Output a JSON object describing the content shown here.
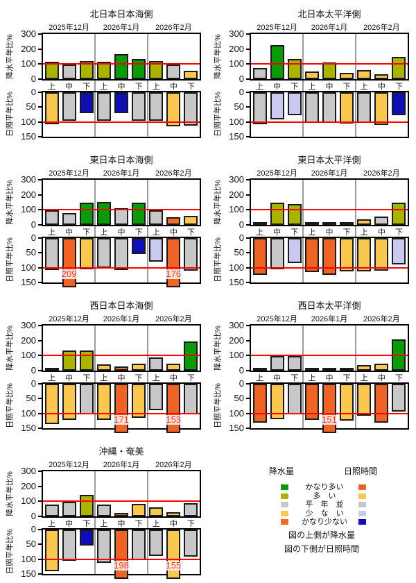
{
  "axes_common": {
    "precip_ylabel": "降水平年比%",
    "sun_ylabel": "日照平年比%",
    "precip_ylim": [
      0,
      300
    ],
    "precip_yticks": [
      0,
      100,
      200,
      300
    ],
    "sun_ylim": [
      0,
      150
    ],
    "sun_yticks": [
      0,
      50,
      100,
      150
    ],
    "sun_axis_inverted": true,
    "reference_line": 100,
    "grid": false
  },
  "colors": {
    "ref_line": "#ff0000",
    "month_divider": "#9b9b9b",
    "bar_outline": "#1a1a1a",
    "overflow_label": "#ff3333",
    "precip_scale": {
      "かなり多い": "#0a9a0a",
      "多い": "#a9b400",
      "平年並": "#c8c8c8",
      "少ない": "#fac750",
      "かなり少ない": "#ee6e26"
    },
    "sunshine_scale": {
      "かなり多い": "#ed6426",
      "多い": "#fac750",
      "平年並": "#c8c8c8",
      "少ない": "#cacaf0",
      "かなり少ない": "#0f0fb6"
    }
  },
  "chart_data": [
    {
      "type": "bar",
      "title": "北日本日本海側",
      "name": "chart-north-japan-sea-side",
      "months": [
        "2025年12月",
        "2026年1月",
        "2026年2月"
      ],
      "periods": [
        "上",
        "中",
        "下",
        "上",
        "中",
        "下",
        "上",
        "中",
        "下"
      ],
      "precip": {
        "ylabel": "降水平年比%",
        "ylim": [
          0,
          300
        ],
        "yticks": [
          0,
          100,
          200,
          300
        ],
        "ref_line": 100,
        "values": [
          115,
          95,
          120,
          115,
          165,
          135,
          120,
          95,
          57
        ],
        "categories": [
          "多い",
          "平年並",
          "多い",
          "多い",
          "かなり多い",
          "かなり多い",
          "多い",
          "平年並",
          "少ない"
        ]
      },
      "sunshine": {
        "ylabel": "日照平年比%",
        "ylim": [
          0,
          150
        ],
        "inverted": true,
        "yticks": [
          0,
          50,
          100,
          150
        ],
        "ref_line": 100,
        "values": [
          107,
          96,
          71,
          96,
          71,
          96,
          96,
          116,
          112
        ],
        "categories": [
          "多い",
          "平年並",
          "かなり少ない",
          "平年並",
          "かなり少ない",
          "平年並",
          "平年並",
          "多い",
          "平年並"
        ]
      }
    },
    {
      "type": "bar",
      "title": "北日本太平洋側",
      "name": "chart-north-japan-pacific-side",
      "months": [
        "2025年12月",
        "2026年1月",
        "2026年2月"
      ],
      "periods": [
        "上",
        "中",
        "下",
        "上",
        "中",
        "下",
        "上",
        "中",
        "下"
      ],
      "precip": {
        "ylabel": "降水平年比%",
        "ylim": [
          0,
          300
        ],
        "yticks": [
          0,
          100,
          200,
          300
        ],
        "ref_line": 100,
        "values": [
          73,
          225,
          135,
          53,
          111,
          40,
          59,
          34,
          149
        ],
        "categories": [
          "平年並",
          "かなり多い",
          "多い",
          "少ない",
          "多い",
          "少ない",
          "少ない",
          "少ない",
          "多い"
        ]
      },
      "sunshine": {
        "ylabel": "日照平年比%",
        "ylim": [
          0,
          150
        ],
        "inverted": true,
        "yticks": [
          0,
          50,
          100,
          150
        ],
        "ref_line": 100,
        "values": [
          107,
          91,
          78,
          103,
          102,
          106,
          103,
          109,
          77
        ],
        "categories": [
          "平年並",
          "少ない",
          "少ない",
          "平年並",
          "平年並",
          "多い",
          "平年並",
          "多い",
          "かなり少ない"
        ]
      }
    },
    {
      "type": "bar",
      "title": "東日本日本海側",
      "name": "chart-east-japan-sea-side",
      "months": [
        "2025年12月",
        "2026年1月",
        "2026年2月"
      ],
      "periods": [
        "上",
        "中",
        "下",
        "上",
        "中",
        "下",
        "上",
        "中",
        "下"
      ],
      "precip": {
        "ylabel": "降水平年比%",
        "ylim": [
          0,
          300
        ],
        "yticks": [
          0,
          100,
          200,
          300
        ],
        "ref_line": 100,
        "values": [
          95,
          80,
          148,
          152,
          110,
          148,
          95,
          50,
          62
        ],
        "categories": [
          "平年並",
          "平年並",
          "かなり多い",
          "かなり多い",
          "平年並",
          "かなり多い",
          "平年並",
          "かなり少ない",
          "少ない"
        ]
      },
      "sunshine": {
        "ylabel": "日照平年比%",
        "ylim": [
          0,
          150
        ],
        "inverted": true,
        "yticks": [
          0,
          50,
          100,
          150
        ],
        "ref_line": 100,
        "values": [
          107,
          209,
          105,
          100,
          107,
          53,
          80,
          176,
          110
        ],
        "categories": [
          "平年並",
          "かなり多い",
          "多い",
          "平年並",
          "平年並",
          "かなり少ない",
          "少ない",
          "かなり多い",
          "平年並"
        ]
      }
    },
    {
      "type": "bar",
      "title": "東日本太平洋側",
      "name": "chart-east-japan-pacific-side",
      "months": [
        "2025年12月",
        "2026年1月",
        "2026年2月"
      ],
      "periods": [
        "上",
        "中",
        "下",
        "上",
        "中",
        "下",
        "上",
        "中",
        "下"
      ],
      "precip": {
        "ylabel": "降水平年比%",
        "ylim": [
          0,
          300
        ],
        "yticks": [
          0,
          100,
          200,
          300
        ],
        "ref_line": 100,
        "values": [
          10,
          148,
          138,
          15,
          20,
          10,
          35,
          55,
          148
        ],
        "categories": [
          "かなり少ない",
          "多い",
          "多い",
          "少ない",
          "少ない",
          "かなり少ない",
          "少ない",
          "平年並",
          "多い"
        ]
      },
      "sunshine": {
        "ylabel": "日照平年比%",
        "ylim": [
          0,
          150
        ],
        "inverted": true,
        "yticks": [
          0,
          50,
          100,
          150
        ],
        "ref_line": 100,
        "values": [
          125,
          105,
          84,
          115,
          125,
          112,
          113,
          110,
          89
        ],
        "categories": [
          "かなり多い",
          "平年並",
          "少ない",
          "かなり多い",
          "かなり多い",
          "多い",
          "多い",
          "多い",
          "少ない"
        ]
      }
    },
    {
      "type": "bar",
      "title": "西日本日本海側",
      "name": "chart-west-japan-sea-side",
      "months": [
        "2025年12月",
        "2026年1月",
        "2026年2月"
      ],
      "periods": [
        "上",
        "中",
        "下",
        "上",
        "中",
        "下",
        "上",
        "中",
        "下"
      ],
      "precip": {
        "ylabel": "降水平年比%",
        "ylim": [
          0,
          300
        ],
        "yticks": [
          0,
          100,
          200,
          300
        ],
        "ref_line": 100,
        "values": [
          17,
          134,
          134,
          43,
          27,
          47,
          88,
          44,
          196
        ],
        "categories": [
          "かなり少ない",
          "多い",
          "多い",
          "少ない",
          "かなり少ない",
          "少ない",
          "平年並",
          "少ない",
          "かなり多い"
        ]
      },
      "sunshine": {
        "ylabel": "日照平年比%",
        "ylim": [
          0,
          150
        ],
        "inverted": true,
        "yticks": [
          0,
          50,
          100,
          150
        ],
        "ref_line": 100,
        "values": [
          137,
          121,
          103,
          121,
          171,
          115,
          90,
          153,
          103
        ],
        "categories": [
          "多い",
          "多い",
          "平年並",
          "多い",
          "かなり多い",
          "多い",
          "平年並",
          "かなり多い",
          "平年並"
        ]
      }
    },
    {
      "type": "bar",
      "title": "西日本太平洋側",
      "name": "chart-west-japan-pacific-side",
      "months": [
        "2025年12月",
        "2026年1月",
        "2026年2月"
      ],
      "periods": [
        "上",
        "中",
        "下",
        "上",
        "中",
        "下",
        "上",
        "中",
        "下"
      ],
      "precip": {
        "ylabel": "降水平年比%",
        "ylim": [
          0,
          300
        ],
        "yticks": [
          0,
          100,
          200,
          300
        ],
        "ref_line": 100,
        "values": [
          5,
          95,
          95,
          20,
          8,
          8,
          36,
          45,
          210
        ],
        "categories": [
          "かなり少ない",
          "平年並",
          "平年並",
          "少ない",
          "かなり少ない",
          "かなり少ない",
          "少ない",
          "少ない",
          "かなり多い"
        ]
      },
      "sunshine": {
        "ylabel": "日照平年比%",
        "ylim": [
          0,
          150
        ],
        "inverted": true,
        "yticks": [
          0,
          50,
          100,
          150
        ],
        "ref_line": 100,
        "values": [
          131,
          119,
          103,
          122,
          151,
          124,
          108,
          132,
          93
        ],
        "categories": [
          "かなり多い",
          "多い",
          "平年並",
          "かなり多い",
          "かなり多い",
          "多い",
          "多い",
          "かなり多い",
          "平年並"
        ]
      }
    },
    {
      "type": "bar",
      "title": "沖縄・奄美",
      "name": "chart-okinawa-amami",
      "months": [
        "2025年12月",
        "2026年1月",
        "2026年2月"
      ],
      "periods": [
        "上",
        "中",
        "下",
        "上",
        "中",
        "下",
        "上",
        "中",
        "下"
      ],
      "precip": {
        "ylabel": "降水平年比%",
        "ylim": [
          0,
          300
        ],
        "yticks": [
          0,
          100,
          200,
          300
        ],
        "ref_line": 100,
        "values": [
          77,
          97,
          142,
          77,
          22,
          82,
          60,
          30,
          87
        ],
        "categories": [
          "平年並",
          "平年並",
          "多い",
          "平年並",
          "かなり少ない",
          "少ない",
          "少ない",
          "少ない",
          "平年並"
        ]
      },
      "sunshine": {
        "ylabel": "日照平年比%",
        "ylim": [
          0,
          150
        ],
        "inverted": true,
        "yticks": [
          0,
          50,
          100,
          150
        ],
        "ref_line": 100,
        "values": [
          141,
          106,
          55,
          113,
          198,
          103,
          88,
          155,
          92
        ],
        "categories": [
          "多い",
          "平年並",
          "かなり少ない",
          "平年並",
          "かなり多い",
          "平年並",
          "平年並",
          "多い",
          "平年並"
        ]
      }
    }
  ],
  "legend": {
    "precip_header": "降水量",
    "sun_header": "日照時間",
    "rows": [
      {
        "label": "かなり多い",
        "precip": "#0a9a0a",
        "sun": "#ed6426"
      },
      {
        "label": "多　い",
        "precip": "#a9b400",
        "sun": "#fac750"
      },
      {
        "label": "平　年　並",
        "precip": "#c8c8c8",
        "sun": "#c8c8c8"
      },
      {
        "label": "少　な　い",
        "precip": "#fac750",
        "sun": "#cacaf0"
      },
      {
        "label": "かなり少ない",
        "precip": "#ee6e26",
        "sun": "#0f0fb6"
      }
    ],
    "note_line1": "図の上側が降水量",
    "note_line2": "図の下側が日照時間"
  }
}
